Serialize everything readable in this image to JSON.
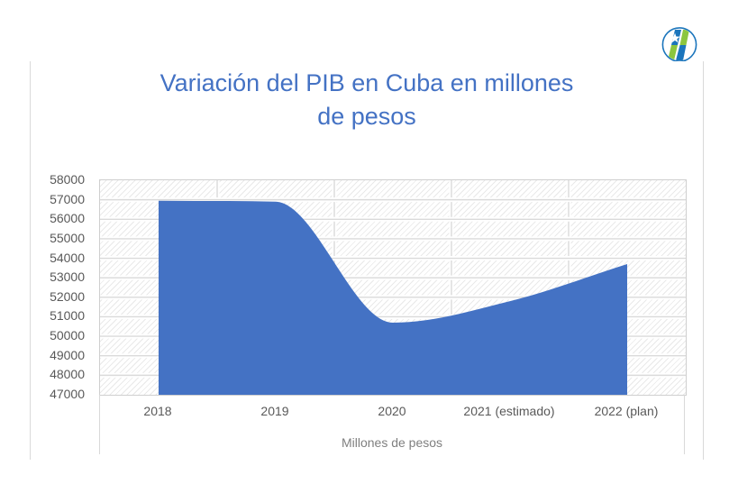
{
  "logo": {
    "name": "circle-star-stripes-logo",
    "ring_color": "#1B75BC",
    "blue": "#1B75BC",
    "green": "#8CC63F",
    "star_color": "#FFFFFF"
  },
  "slide": {
    "border_color": "#D9D9D9"
  },
  "title": {
    "text": "Variación del PIB en Cuba en millones de pesos",
    "lines": [
      "Variación del PIB en Cuba en millones",
      "de pesos"
    ],
    "color": "#4472C4"
  },
  "chart_data": {
    "type": "area",
    "title": "Variación del PIB en Cuba en millones de pesos",
    "categories": [
      "2018",
      "2019",
      "2020",
      "2021 (estimado)",
      "2022 (plan)"
    ],
    "series": [
      {
        "name": "Millones de pesos",
        "values": [
          56950,
          56900,
          50700,
          51800,
          53700
        ]
      }
    ],
    "xlabel": "Millones de pesos",
    "ylabel": "",
    "ylim": [
      47000,
      58000
    ],
    "ytick_step": 1000,
    "ytick_labels": [
      "58000",
      "57000",
      "56000",
      "55000",
      "54000",
      "53000",
      "52000",
      "51000",
      "50000",
      "49000",
      "48000",
      "47000"
    ],
    "grid": true,
    "legend": "none",
    "smooth_line": true,
    "area_fill": "#4472C4",
    "gridline_color": "#DADADA",
    "gridline_casing": "#FFFFFF",
    "plot_border_color": "#CFCFCF",
    "plot_hatch_color": "#E9E9E9",
    "axis_label_color": "#595959",
    "axis_title_color": "#7F7F7F"
  }
}
